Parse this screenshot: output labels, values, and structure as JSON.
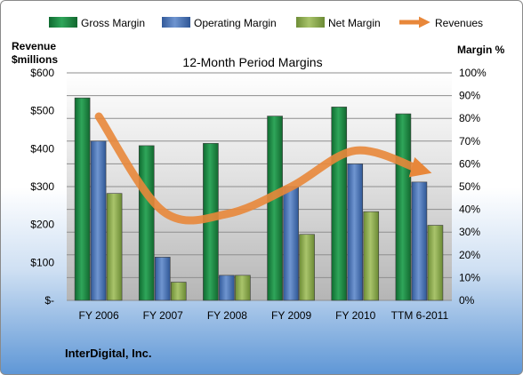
{
  "chart_data": {
    "type": "bar",
    "title": "12-Month Period Margins",
    "categories": [
      "FY 2006",
      "FY 2007",
      "FY 2008",
      "FY 2009",
      "FY 2010",
      "TTM 6-2011"
    ],
    "series": [
      {
        "name": "Gross Margin",
        "axis": "right",
        "color": "#1e8a45",
        "values": [
          89,
          68,
          69,
          81,
          85,
          82
        ]
      },
      {
        "name": "Operating Margin",
        "axis": "right",
        "color": "#4a74b8",
        "values": [
          70,
          19,
          11,
          50,
          60,
          52
        ]
      },
      {
        "name": "Net Margin",
        "axis": "right",
        "color": "#8cab4e",
        "values": [
          47,
          8,
          11,
          29,
          39,
          33
        ]
      },
      {
        "name": "Revenues",
        "axis": "left",
        "type": "line",
        "color": "#e8873a",
        "values": [
          485,
          235,
          228,
          300,
          395,
          345
        ]
      }
    ],
    "ylabel_left": "Revenue\n$millions",
    "ylabel_right": "Margin %",
    "ylim_left": [
      0,
      600
    ],
    "ylim_right": [
      0,
      100
    ],
    "yticks_left": [
      "$-",
      "$100",
      "$200",
      "$300",
      "$400",
      "$500",
      "$600"
    ],
    "yticks_right": [
      "0%",
      "10%",
      "20%",
      "30%",
      "40%",
      "50%",
      "60%",
      "70%",
      "80%",
      "90%",
      "100%"
    ],
    "grid": true,
    "legend_position": "top",
    "source_label": "InterDigital, Inc."
  }
}
